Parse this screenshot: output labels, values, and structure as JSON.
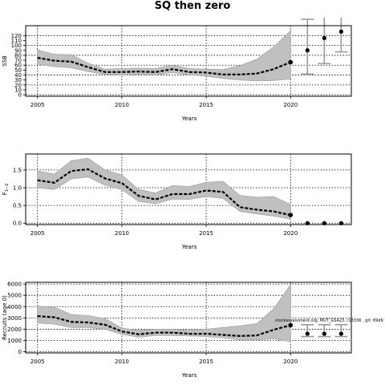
{
  "title": "SQ then zero",
  "annotation": "stockassessment.org, MUT_GSA23, r13336 , git: 69d9",
  "colors": {
    "band": "#c0c0c0",
    "band_edge": "#a6a6a6",
    "line": "#000000",
    "whisker": "#9a9a9a"
  },
  "chart_data": [
    {
      "type": "line",
      "xlabel": "Years",
      "ylabel": "SSB",
      "xlim": [
        2004.3,
        2023.6
      ],
      "ylim": [
        -3,
        140
      ],
      "xticks": [
        2005,
        2010,
        2015,
        2020
      ],
      "yticks": [
        0,
        10,
        20,
        30,
        40,
        50,
        60,
        70,
        80,
        90,
        100,
        110,
        120
      ],
      "grid_x": [
        2005,
        2010,
        2015,
        2020
      ],
      "grid_y": [
        0,
        20,
        40,
        60,
        80,
        100,
        120
      ],
      "x": [
        2005,
        2006,
        2007,
        2008,
        2009,
        2010,
        2011,
        2012,
        2013,
        2014,
        2015,
        2016,
        2017,
        2018,
        2019,
        2020
      ],
      "estimate": [
        75,
        69,
        67,
        56,
        46,
        46,
        47,
        46,
        52,
        46,
        45,
        41,
        41,
        43,
        52,
        66
      ],
      "lower": [
        62,
        57,
        55,
        47,
        41,
        40,
        41,
        40,
        45,
        40,
        38,
        33,
        30,
        28,
        29,
        32
      ],
      "upper": [
        91,
        82,
        81,
        64,
        52,
        53,
        54,
        53,
        60,
        53,
        52,
        51,
        59,
        72,
        97,
        130
      ],
      "forecast": [
        {
          "x": 2021,
          "y": 90,
          "low": 42,
          "high": 153
        },
        {
          "x": 2022,
          "y": 115,
          "low": 63,
          "high": 175
        },
        {
          "x": 2023,
          "y": 128,
          "low": 87,
          "high": 192
        }
      ]
    },
    {
      "type": "line",
      "xlabel": "Years",
      "ylabel": "F1-2",
      "ylabel_main": "F",
      "ylabel_sub": "1−2",
      "xlim": [
        2004.3,
        2023.6
      ],
      "ylim": [
        -0.04,
        1.95
      ],
      "xticks": [
        2005,
        2010,
        2015,
        2020
      ],
      "yticks": [
        "0.0",
        "0.5",
        "1.0",
        "1.5"
      ],
      "ytick_values": [
        0,
        0.5,
        1,
        1.5
      ],
      "grid_x": [
        2005,
        2010,
        2015,
        2020
      ],
      "grid_y": [
        0,
        0.5,
        1,
        1.5
      ],
      "x": [
        2005,
        2006,
        2007,
        2008,
        2009,
        2010,
        2011,
        2012,
        2013,
        2014,
        2015,
        2016,
        2017,
        2018,
        2019,
        2020
      ],
      "estimate": [
        1.21,
        1.14,
        1.47,
        1.52,
        1.26,
        1.13,
        0.77,
        0.67,
        0.82,
        0.82,
        0.92,
        0.88,
        0.45,
        0.38,
        0.33,
        0.23
      ],
      "lower": [
        1.0,
        0.95,
        1.25,
        1.3,
        1.07,
        0.95,
        0.61,
        0.55,
        0.68,
        0.67,
        0.75,
        0.7,
        0.33,
        0.26,
        0.2,
        0.11
      ],
      "upper": [
        1.47,
        1.38,
        1.76,
        1.83,
        1.5,
        1.36,
        0.95,
        0.85,
        1.06,
        1.03,
        1.15,
        1.18,
        0.78,
        0.73,
        0.75,
        0.53
      ],
      "forecast": [
        {
          "x": 2021,
          "y": 0
        },
        {
          "x": 2022,
          "y": 0
        },
        {
          "x": 2023,
          "y": 0
        }
      ]
    },
    {
      "type": "line",
      "xlabel": "Years",
      "ylabel": "Recruits (age 0)",
      "xlim": [
        2004.3,
        2023.6
      ],
      "ylim": [
        -100,
        6150
      ],
      "xticks": [
        2005,
        2010,
        2015,
        2020
      ],
      "yticks": [
        0,
        1000,
        2000,
        3000,
        4000,
        5000,
        6000
      ],
      "grid_x": [
        2005,
        2010,
        2015,
        2020
      ],
      "grid_y": [
        0,
        1000,
        2000,
        3000,
        4000,
        5000,
        6000
      ],
      "x": [
        2005,
        2006,
        2007,
        2008,
        2009,
        2010,
        2011,
        2012,
        2013,
        2014,
        2015,
        2016,
        2017,
        2018,
        2019,
        2020
      ],
      "estimate": [
        3150,
        3050,
        2650,
        2600,
        2400,
        1800,
        1550,
        1700,
        1700,
        1600,
        1600,
        1500,
        1400,
        1450,
        1950,
        2350
      ],
      "lower": [
        2550,
        2450,
        2150,
        2150,
        2000,
        1550,
        1300,
        1450,
        1450,
        1400,
        1350,
        1250,
        1050,
        1050,
        1150,
        900
      ],
      "upper": [
        4050,
        3950,
        3300,
        3200,
        2950,
        2100,
        1900,
        2000,
        2000,
        1900,
        2000,
        2150,
        2300,
        2500,
        3800,
        5950
      ],
      "forecast": [
        {
          "x": 2021,
          "y": 1600,
          "low": 1350,
          "high": 2400
        },
        {
          "x": 2022,
          "y": 1600,
          "low": 1350,
          "high": 2400
        },
        {
          "x": 2023,
          "y": 1600,
          "low": 1350,
          "high": 2400
        }
      ]
    }
  ]
}
